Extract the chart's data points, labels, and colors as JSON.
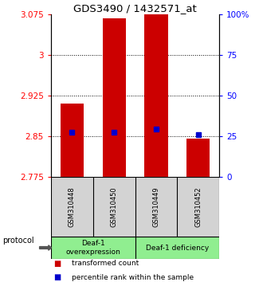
{
  "title": "GDS3490 / 1432571_at",
  "samples": [
    "GSM310448",
    "GSM310450",
    "GSM310449",
    "GSM310452"
  ],
  "bar_tops": [
    2.91,
    3.068,
    3.075,
    2.845
  ],
  "bar_bottom": 2.775,
  "percentile_values": [
    2.858,
    2.858,
    2.863,
    2.853
  ],
  "ylim": [
    2.775,
    3.075
  ],
  "yticks_left": [
    2.775,
    2.85,
    2.925,
    3.0,
    3.075
  ],
  "yticks_right_vals": [
    2.775,
    2.85,
    2.925,
    3.0,
    3.075
  ],
  "yticks_right_labels": [
    "0",
    "25",
    "50",
    "75",
    "100%"
  ],
  "dotted_lines": [
    2.85,
    2.925,
    3.0
  ],
  "bar_color": "#cc0000",
  "marker_color": "#0000cc",
  "group1_label": "Deaf-1\noverexpression",
  "group2_label": "Deaf-1 deficiency",
  "group_bg_color": "#90ee90",
  "sample_bg_color": "#d3d3d3",
  "protocol_label": "protocol",
  "legend_bar_label": "transformed count",
  "legend_marker_label": "percentile rank within the sample"
}
